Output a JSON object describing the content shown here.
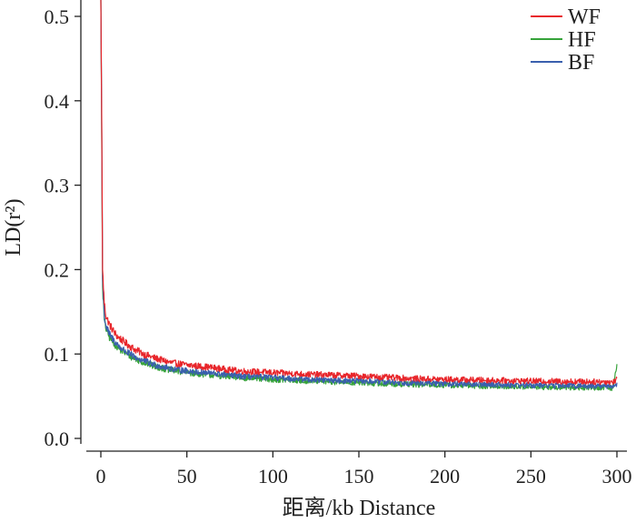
{
  "chart_data": {
    "type": "line",
    "xlabel": "距离/kb  Distance",
    "ylabel": "LD(r²)",
    "xlim": [
      0,
      300
    ],
    "ylim": [
      0,
      0.5
    ],
    "xticks": [
      0,
      50,
      100,
      150,
      200,
      250,
      300
    ],
    "yticks": [
      0.0,
      0.1,
      0.2,
      0.3,
      0.4,
      0.5
    ],
    "ytick_labels": [
      "0.0",
      "0.1",
      "0.2",
      "0.3",
      "0.4",
      "0.5"
    ],
    "grid": false,
    "legend": {
      "position": "top-right",
      "entries": [
        "WF",
        "HF",
        "BF"
      ]
    },
    "series": [
      {
        "name": "WF",
        "color": "#e8262b",
        "x": [
          0,
          0.5,
          1,
          2,
          3,
          5,
          8,
          10,
          15,
          20,
          25,
          30,
          40,
          50,
          60,
          80,
          100,
          120,
          150,
          180,
          200,
          250,
          298,
          300
        ],
        "y": [
          0.52,
          0.38,
          0.2,
          0.16,
          0.145,
          0.135,
          0.125,
          0.12,
          0.112,
          0.105,
          0.1,
          0.096,
          0.09,
          0.087,
          0.085,
          0.08,
          0.078,
          0.076,
          0.074,
          0.071,
          0.07,
          0.068,
          0.067,
          0.07
        ]
      },
      {
        "name": "HF",
        "color": "#36a33a",
        "x": [
          0,
          0.5,
          1,
          2,
          3,
          5,
          8,
          10,
          15,
          20,
          25,
          30,
          40,
          50,
          60,
          80,
          100,
          120,
          150,
          180,
          200,
          250,
          298,
          300
        ],
        "y": [
          0.52,
          0.36,
          0.18,
          0.14,
          0.13,
          0.12,
          0.112,
          0.107,
          0.1,
          0.094,
          0.09,
          0.086,
          0.081,
          0.078,
          0.076,
          0.072,
          0.07,
          0.068,
          0.066,
          0.064,
          0.063,
          0.061,
          0.06,
          0.09
        ]
      },
      {
        "name": "BF",
        "color": "#3a5fae",
        "x": [
          0,
          0.5,
          1,
          2,
          3,
          5,
          8,
          10,
          15,
          20,
          25,
          30,
          40,
          50,
          60,
          80,
          100,
          120,
          150,
          180,
          200,
          250,
          298,
          300
        ],
        "y": [
          0.52,
          0.37,
          0.19,
          0.145,
          0.133,
          0.123,
          0.115,
          0.11,
          0.102,
          0.096,
          0.092,
          0.088,
          0.083,
          0.08,
          0.078,
          0.074,
          0.072,
          0.07,
          0.068,
          0.066,
          0.065,
          0.063,
          0.062,
          0.064
        ]
      }
    ]
  }
}
